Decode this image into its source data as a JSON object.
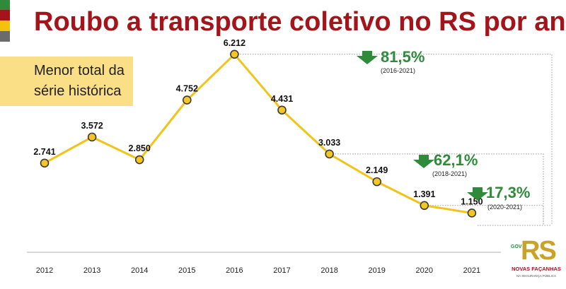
{
  "title": "Roubo a transporte coletivo no RS por ano",
  "flag_colors": [
    "#2e8b3a",
    "#a3151a",
    "#f4c20d",
    "#6b6b6b"
  ],
  "callout": {
    "line1": "Menor total da",
    "line2": "série histórica"
  },
  "colors": {
    "line": "#f0c419",
    "marker_fill": "#f3c623",
    "marker_stroke": "#3a3a3a",
    "title": "#a3151a",
    "decrease": "#2e8b3a",
    "connector": "#9a9a9a"
  },
  "changes": [
    {
      "percent": "81,5%",
      "period": "(2016-2021)"
    },
    {
      "percent": "62,1%",
      "period": "(2018-2021)"
    },
    {
      "percent": "17,3%",
      "period": "(2020-2021)"
    }
  ],
  "logo": {
    "gov": "GOV",
    "brand": "RS",
    "tagline": "NOVAS FAÇANHAS",
    "sub": "NA SEGURANÇA PÚBLICA"
  },
  "chart_data": {
    "type": "line",
    "title": "Roubo a transporte coletivo no RS por ano",
    "categories": [
      "2012",
      "2013",
      "2014",
      "2015",
      "2016",
      "2017",
      "2018",
      "2019",
      "2020",
      "2021"
    ],
    "values": [
      2741,
      3572,
      2850,
      4752,
      6212,
      4431,
      3033,
      2149,
      1391,
      1150
    ],
    "data_labels": [
      "2.741",
      "3.572",
      "2.850",
      "4.752",
      "6.212",
      "4.431",
      "3.033",
      "2.149",
      "1.391",
      "1.150"
    ],
    "ylim": [
      0,
      6800
    ],
    "grid": false,
    "legend": "none"
  }
}
